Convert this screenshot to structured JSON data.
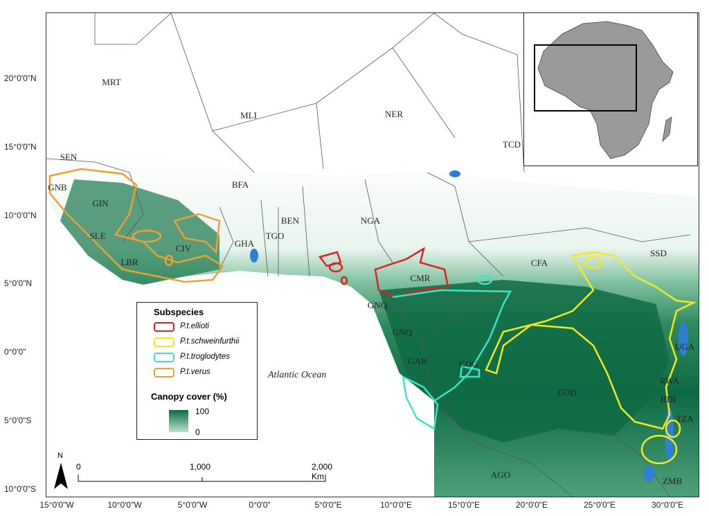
{
  "axes": {
    "lat_labels": [
      "20°0'0\"N",
      "15°0'0\"N",
      "10°0'0\"N",
      "5°0'0\"N",
      "0°0'0\"",
      "5°0'0\"S",
      "10°0'0\"S"
    ],
    "lon_labels": [
      "15°0'0\"W",
      "10°0'0\"W",
      "5°0'0\"W",
      "0°0'0\"",
      "5°0'0\"E",
      "10°0'0\"E",
      "15°0'0\"E",
      "20°0'0\"E",
      "25°0'0\"E",
      "30°0'0\"E"
    ]
  },
  "countries": [
    "MRT",
    "MLI",
    "NER",
    "TCD",
    "SEN",
    "GNB",
    "GIN",
    "BFA",
    "BEN",
    "NGA",
    "SLE",
    "LBR",
    "CIV",
    "GHA",
    "TGO",
    "CMR",
    "CFA",
    "SSD",
    "GNQ",
    "GNQ",
    "GAB",
    "COG",
    "COD",
    "UGA",
    "RWA",
    "BDI",
    "TZA",
    "AGO",
    "ZMB"
  ],
  "ocean_label": "Atlantic Ocean",
  "legend": {
    "title": "Subspecies",
    "items": [
      {
        "label": "P.t.ellioti",
        "color": "#e02020"
      },
      {
        "label": "P.t.schweinfurthii",
        "color": "#f3ea1b"
      },
      {
        "label": "P.t.troglodytes",
        "color": "#3ee3c5"
      },
      {
        "label": "P.t.verus",
        "color": "#f0a030"
      }
    ],
    "canopy_title": "Canopy cover (%)",
    "canopy_max": "100",
    "canopy_min": "0"
  },
  "scale": {
    "labels": [
      "0",
      "1,000",
      "2,000 Km"
    ]
  },
  "north_label": "N",
  "colors": {
    "forest_dark": "#0d6a42",
    "forest_light": "#b9e3cf",
    "water": "#2f7fd6",
    "inset_land": "#9a9a9a"
  }
}
